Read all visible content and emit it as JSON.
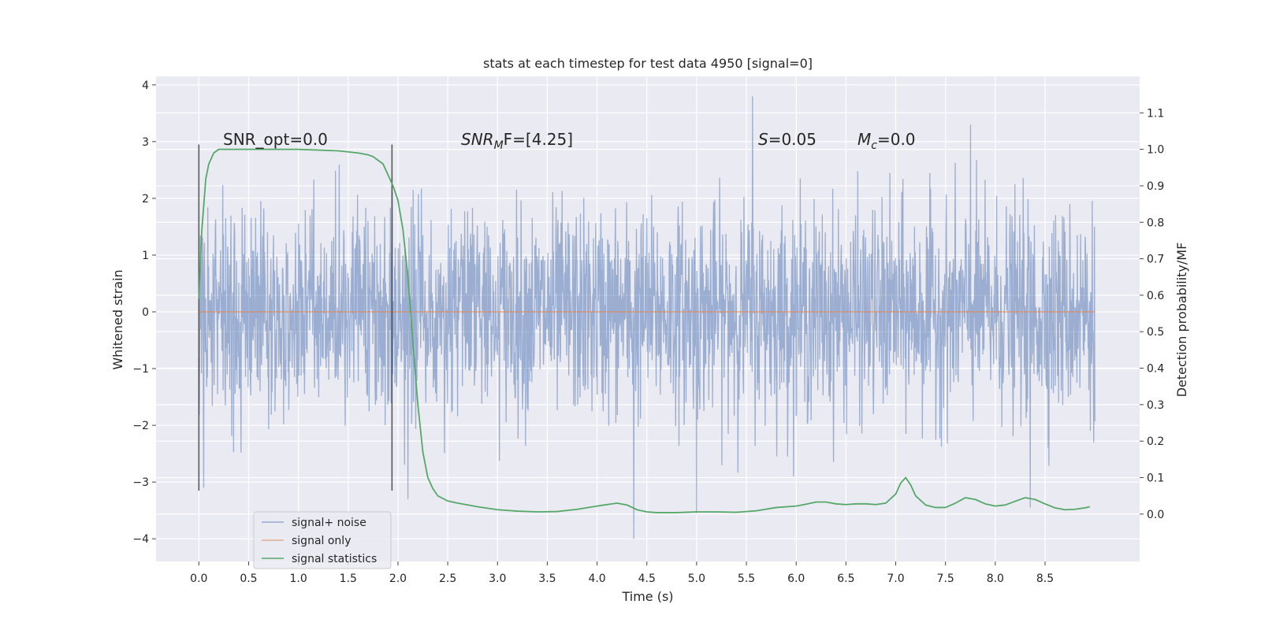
{
  "chart_data": {
    "type": "line",
    "title": "stats at each timestep for test data 4950 [signal=0]",
    "xlabel": "Time (s)",
    "ylabel": "Whitened strain",
    "y2label": "Detection probability/MF",
    "xlim": [
      -0.43,
      9.45
    ],
    "ylim": [
      -4.4,
      4.15
    ],
    "y2lim": [
      -0.13,
      1.2
    ],
    "x_ticks": [
      "0.0",
      "0.5",
      "1.0",
      "1.5",
      "2.0",
      "2.5",
      "3.0",
      "3.5",
      "4.0",
      "4.5",
      "5.0",
      "5.5",
      "6.0",
      "6.5",
      "7.0",
      "7.5",
      "8.0",
      "8.5"
    ],
    "y_ticks": [
      "−4",
      "−3",
      "−2",
      "−1",
      "0",
      "1",
      "2",
      "3",
      "4"
    ],
    "y2_ticks": [
      "0.0",
      "0.1",
      "0.2",
      "0.3",
      "0.4",
      "0.5",
      "0.6",
      "0.7",
      "0.8",
      "0.9",
      "1.0",
      "1.1"
    ],
    "grid": true,
    "legend": {
      "placement": "lower-left",
      "entries": [
        "signal+ noise",
        "signal only",
        "signal statistics"
      ]
    },
    "annotations": {
      "snr_opt": "SNR_opt=0.0",
      "snr_mf_main": "SNR",
      "snr_mf_sub": "M",
      "snr_mf_rest": "F=[4.25]",
      "s_italic": "S",
      "s_rest": "=0.05",
      "mc_main": "M",
      "mc_sub": "c",
      "mc_rest": "=0.0"
    },
    "vertical_markers_x": [
      0.0,
      1.94
    ],
    "noise_series": {
      "name": "signal+ noise",
      "color": "#4c72b0",
      "x_range": [
        0.0,
        9.0
      ],
      "typical_amplitude": 1.1,
      "extremes": [
        {
          "x": 0.05,
          "y": -3.1
        },
        {
          "x": 2.1,
          "y": -3.3
        },
        {
          "x": 4.37,
          "y": -4.0
        },
        {
          "x": 5.56,
          "y": 3.8
        },
        {
          "x": 5.0,
          "y": -3.55
        },
        {
          "x": 7.75,
          "y": 3.3
        },
        {
          "x": 8.35,
          "y": -3.45
        }
      ]
    },
    "signal_only": {
      "name": "signal only",
      "color": "#dd8452",
      "x": [
        0.0,
        9.0
      ],
      "y": [
        0.0,
        0.0
      ]
    },
    "statistics_series": {
      "name": "signal statistics",
      "color": "#55a868",
      "x": [
        0.0,
        0.03,
        0.07,
        0.1,
        0.15,
        0.2,
        0.25,
        0.3,
        0.4,
        0.6,
        0.8,
        1.0,
        1.2,
        1.4,
        1.6,
        1.7,
        1.75,
        1.8,
        1.85,
        1.9,
        1.95,
        2.0,
        2.05,
        2.1,
        2.15,
        2.2,
        2.25,
        2.3,
        2.35,
        2.4,
        2.5,
        2.6,
        2.8,
        3.0,
        3.2,
        3.4,
        3.6,
        3.8,
        4.0,
        4.1,
        4.2,
        4.3,
        4.4,
        4.5,
        4.6,
        4.8,
        5.0,
        5.2,
        5.4,
        5.6,
        5.8,
        6.0,
        6.1,
        6.2,
        6.3,
        6.4,
        6.5,
        6.6,
        6.7,
        6.8,
        6.9,
        7.0,
        7.05,
        7.1,
        7.15,
        7.2,
        7.3,
        7.4,
        7.5,
        7.6,
        7.7,
        7.8,
        7.9,
        8.0,
        8.1,
        8.2,
        8.3,
        8.4,
        8.5,
        8.6,
        8.7,
        8.8,
        8.9,
        8.95
      ],
      "y": [
        0.59,
        0.78,
        0.92,
        0.96,
        0.99,
        1.0,
        1.0,
        1.0,
        1.0,
        1.0,
        1.0,
        1.0,
        0.998,
        0.996,
        0.99,
        0.985,
        0.98,
        0.97,
        0.96,
        0.93,
        0.9,
        0.86,
        0.78,
        0.65,
        0.47,
        0.3,
        0.17,
        0.1,
        0.07,
        0.05,
        0.036,
        0.03,
        0.02,
        0.012,
        0.008,
        0.006,
        0.007,
        0.013,
        0.022,
        0.026,
        0.03,
        0.025,
        0.012,
        0.006,
        0.004,
        0.004,
        0.006,
        0.006,
        0.005,
        0.009,
        0.018,
        0.022,
        0.027,
        0.033,
        0.033,
        0.028,
        0.026,
        0.028,
        0.028,
        0.026,
        0.03,
        0.055,
        0.085,
        0.1,
        0.08,
        0.05,
        0.025,
        0.018,
        0.018,
        0.03,
        0.045,
        0.04,
        0.028,
        0.022,
        0.025,
        0.035,
        0.045,
        0.04,
        0.028,
        0.017,
        0.012,
        0.013,
        0.017,
        0.02
      ]
    }
  }
}
